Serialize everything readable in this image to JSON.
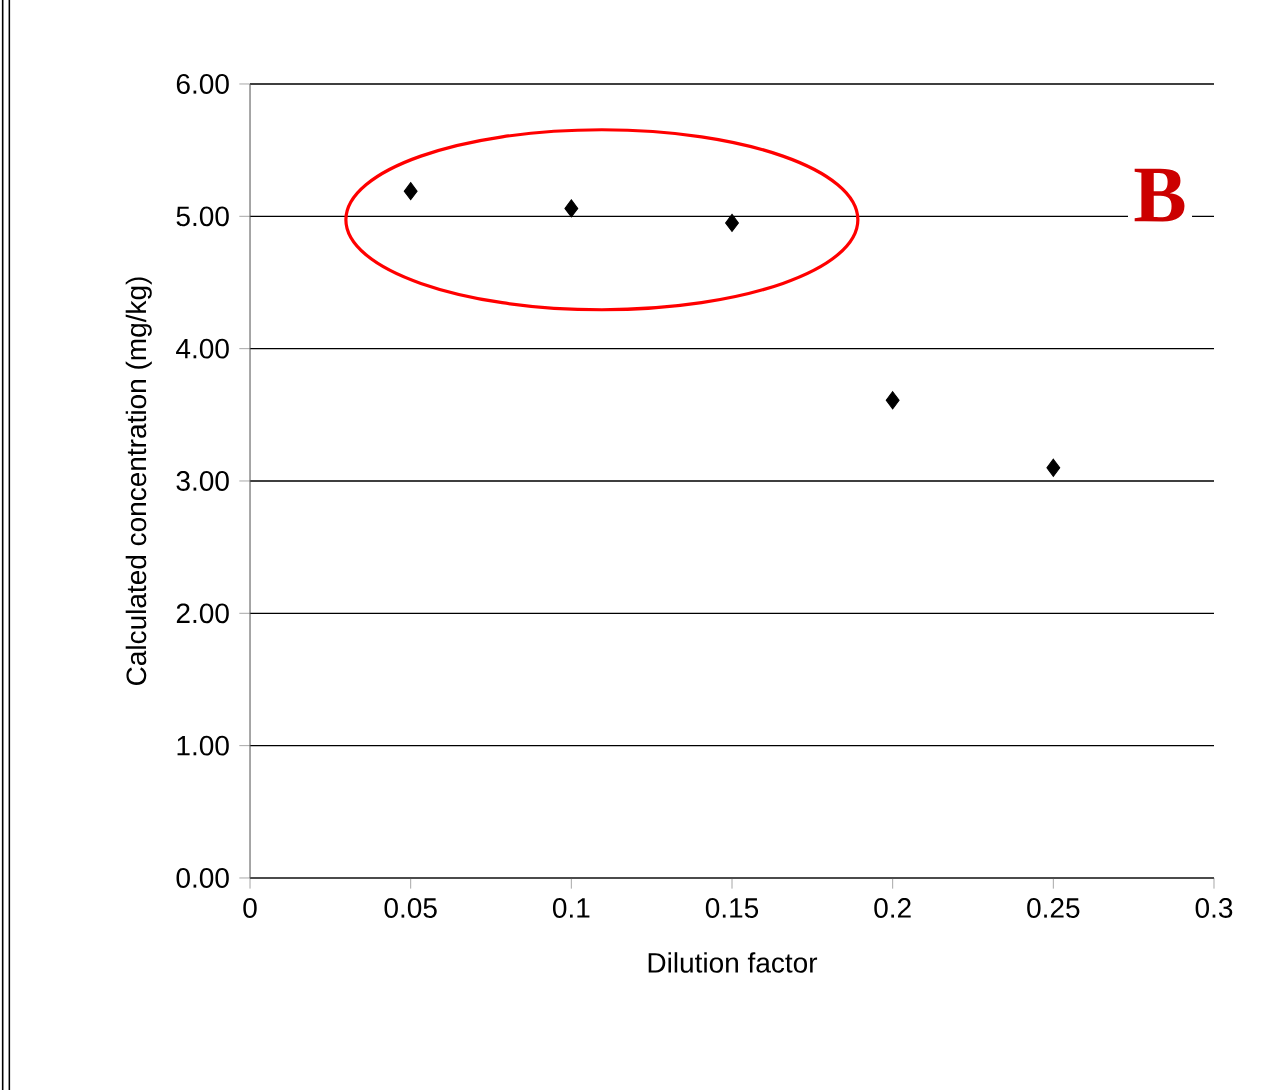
{
  "chart_data": {
    "type": "scatter",
    "xlabel": "Dilution factor",
    "ylabel": "Calculated concentration (mg/kg)",
    "x": [
      0.05,
      0.1,
      0.15,
      0.2,
      0.25
    ],
    "series": [
      {
        "color": "#000000",
        "values": [
          5.19,
          5.06,
          4.95,
          3.61,
          3.1
        ]
      }
    ],
    "xlim": [
      0,
      0.3
    ],
    "ylim": [
      0,
      6
    ],
    "xticks": [
      0,
      0.05,
      0.1,
      0.15,
      0.2,
      0.25,
      0.3
    ],
    "yticks": [
      {
        "value": 0,
        "label": "0.00"
      },
      {
        "value": 1,
        "label": "1.00"
      },
      {
        "value": 2,
        "label": "2.00"
      },
      {
        "value": 3,
        "label": "3.00"
      },
      {
        "value": 4,
        "label": "4.00"
      },
      {
        "value": 5,
        "label": "5.00"
      },
      {
        "value": 6,
        "label": "6.00"
      }
    ],
    "grid": "y",
    "marker": "diamond",
    "annotations": [
      "B"
    ]
  }
}
